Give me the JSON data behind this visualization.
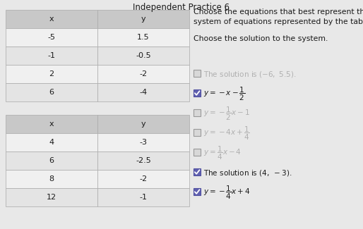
{
  "title": "Independent Practice 6",
  "instruction1": "Choose the equations that best represent the\nsystem of equations represented by the tables.",
  "instruction2": "Choose the solution to the system.",
  "table1_headers": [
    "x",
    "y"
  ],
  "table1_rows": [
    [
      "-5",
      "1.5"
    ],
    [
      "-1",
      "-0.5"
    ],
    [
      "2",
      "-2"
    ],
    [
      "6",
      "-4"
    ]
  ],
  "table2_headers": [
    "x",
    "y"
  ],
  "table2_rows": [
    [
      "4",
      "-3"
    ],
    [
      "6",
      "-2.5"
    ],
    [
      "8",
      "-2"
    ],
    [
      "12",
      "-1"
    ]
  ],
  "options": [
    {
      "text": "The solution is $(-6,\\ 5.5)$.",
      "checked": false,
      "dimmed": true
    },
    {
      "text": "$y = -x - \\dfrac{1}{2}$",
      "checked": true,
      "dimmed": false
    },
    {
      "text": "$y = -\\dfrac{1}{2}x - 1$",
      "checked": false,
      "dimmed": true
    },
    {
      "text": "$y = -4x + \\dfrac{1}{4}$",
      "checked": false,
      "dimmed": true
    },
    {
      "text": "$y = \\dfrac{1}{4}x - 4$",
      "checked": false,
      "dimmed": true
    },
    {
      "text": "The solution is $(4,\\ -3)$.",
      "checked": true,
      "dimmed": false
    },
    {
      "text": "$y = -\\dfrac{1}{4}x + 4$",
      "checked": true,
      "dimmed": false
    }
  ],
  "bg_color": "#e8e8e8",
  "table_header_bg": "#c8c8c8",
  "table_row_bg_even": "#f0f0f0",
  "table_row_bg_odd": "#e4e4e4",
  "check_color_bg": "#6060b0",
  "check_color_border": "#5050a0",
  "dim_color": "#b0b0b0",
  "text_color": "#1a1a1a",
  "option_bg_dim": "#d8d8d8",
  "option_bg_normal": "#c8c8d8"
}
